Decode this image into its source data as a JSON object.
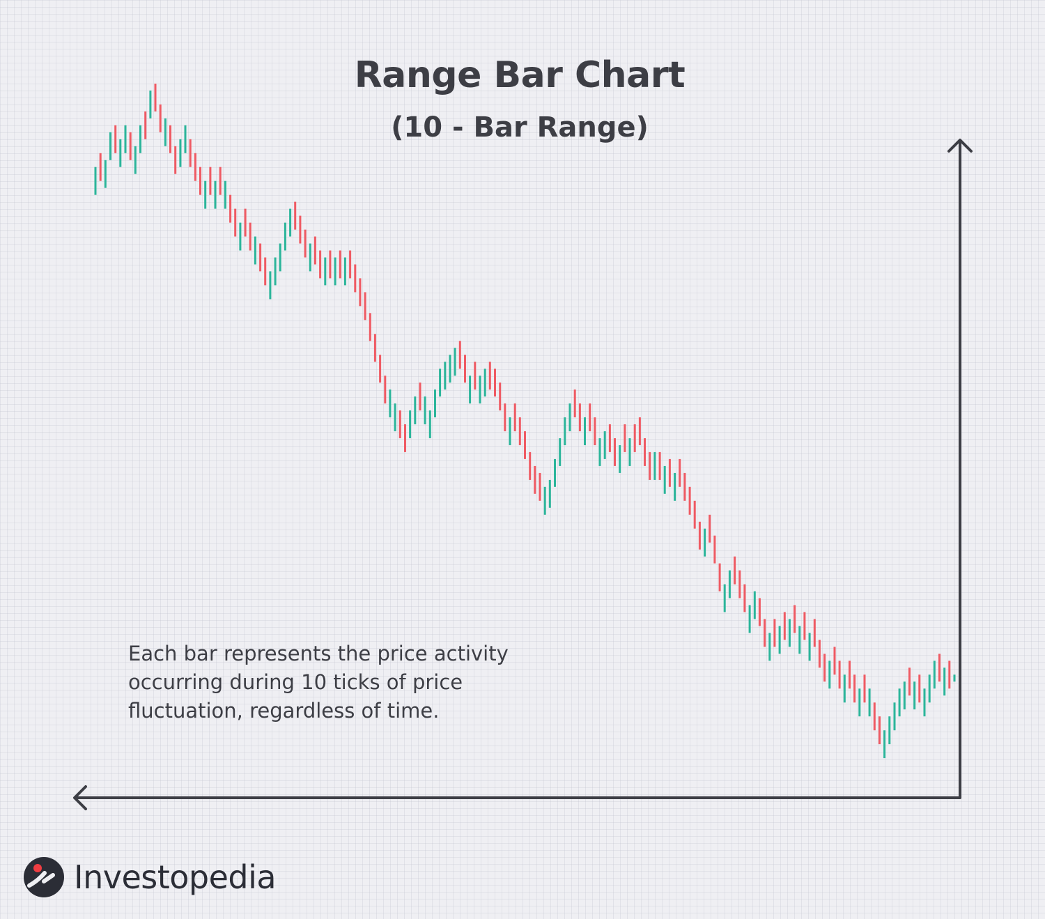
{
  "title": "Range Bar Chart",
  "subtitle": "(10 - Bar Range)",
  "annotation": "Each bar represents the price activity occurring during 10 ticks of price fluctuation, regardless of time.",
  "brand": {
    "name": "Investopedia",
    "icon": "investopedia-logo-icon"
  },
  "colors": {
    "up": "#2bb59a",
    "down": "#ef5a63",
    "axis": "#3d3e45",
    "background": "#efeff3",
    "text": "#3d3e45"
  },
  "chart_data": {
    "type": "range-bar",
    "title": "Range Bar Chart",
    "subtitle": "(10 - Bar Range)",
    "xlabel": "",
    "ylabel": "",
    "range_per_bar": 10,
    "ylim": [
      0,
      520
    ],
    "bars": [
      {
        "d": "up",
        "high": 450,
        "low": 430
      },
      {
        "d": "down",
        "high": 460,
        "low": 440
      },
      {
        "d": "up",
        "high": 455,
        "low": 435
      },
      {
        "d": "up",
        "high": 475,
        "low": 455
      },
      {
        "d": "down",
        "high": 480,
        "low": 460
      },
      {
        "d": "up",
        "high": 470,
        "low": 450
      },
      {
        "d": "up",
        "high": 480,
        "low": 460
      },
      {
        "d": "down",
        "high": 475,
        "low": 455
      },
      {
        "d": "up",
        "high": 465,
        "low": 445
      },
      {
        "d": "up",
        "high": 480,
        "low": 460
      },
      {
        "d": "down",
        "high": 490,
        "low": 470
      },
      {
        "d": "up",
        "high": 505,
        "low": 485
      },
      {
        "d": "down",
        "high": 510,
        "low": 490
      },
      {
        "d": "down",
        "high": 495,
        "low": 475
      },
      {
        "d": "up",
        "high": 485,
        "low": 465
      },
      {
        "d": "down",
        "high": 480,
        "low": 460
      },
      {
        "d": "down",
        "high": 465,
        "low": 445
      },
      {
        "d": "up",
        "high": 470,
        "low": 450
      },
      {
        "d": "up",
        "high": 480,
        "low": 460
      },
      {
        "d": "down",
        "high": 470,
        "low": 450
      },
      {
        "d": "down",
        "high": 460,
        "low": 440
      },
      {
        "d": "down",
        "high": 450,
        "low": 430
      },
      {
        "d": "up",
        "high": 440,
        "low": 420
      },
      {
        "d": "down",
        "high": 450,
        "low": 430
      },
      {
        "d": "up",
        "high": 440,
        "low": 420
      },
      {
        "d": "down",
        "high": 450,
        "low": 430
      },
      {
        "d": "up",
        "high": 440,
        "low": 420
      },
      {
        "d": "down",
        "high": 430,
        "low": 410
      },
      {
        "d": "down",
        "high": 420,
        "low": 400
      },
      {
        "d": "up",
        "high": 410,
        "low": 390
      },
      {
        "d": "down",
        "high": 420,
        "low": 400
      },
      {
        "d": "down",
        "high": 410,
        "low": 390
      },
      {
        "d": "up",
        "high": 400,
        "low": 380
      },
      {
        "d": "down",
        "high": 395,
        "low": 375
      },
      {
        "d": "down",
        "high": 385,
        "low": 365
      },
      {
        "d": "up",
        "high": 375,
        "low": 355
      },
      {
        "d": "up",
        "high": 385,
        "low": 365
      },
      {
        "d": "up",
        "high": 395,
        "low": 375
      },
      {
        "d": "up",
        "high": 410,
        "low": 390
      },
      {
        "d": "up",
        "high": 420,
        "low": 400
      },
      {
        "d": "down",
        "high": 425,
        "low": 405
      },
      {
        "d": "down",
        "high": 415,
        "low": 395
      },
      {
        "d": "down",
        "high": 405,
        "low": 385
      },
      {
        "d": "up",
        "high": 395,
        "low": 375
      },
      {
        "d": "down",
        "high": 400,
        "low": 380
      },
      {
        "d": "down",
        "high": 390,
        "low": 370
      },
      {
        "d": "up",
        "high": 385,
        "low": 365
      },
      {
        "d": "down",
        "high": 390,
        "low": 370
      },
      {
        "d": "up",
        "high": 385,
        "low": 365
      },
      {
        "d": "down",
        "high": 390,
        "low": 370
      },
      {
        "d": "up",
        "high": 385,
        "low": 365
      },
      {
        "d": "down",
        "high": 390,
        "low": 370
      },
      {
        "d": "down",
        "high": 380,
        "low": 360
      },
      {
        "d": "down",
        "high": 370,
        "low": 350
      },
      {
        "d": "down",
        "high": 360,
        "low": 340
      },
      {
        "d": "down",
        "high": 345,
        "low": 325
      },
      {
        "d": "down",
        "high": 330,
        "low": 310
      },
      {
        "d": "down",
        "high": 315,
        "low": 295
      },
      {
        "d": "down",
        "high": 300,
        "low": 280
      },
      {
        "d": "up",
        "high": 290,
        "low": 270
      },
      {
        "d": "up",
        "high": 280,
        "low": 260
      },
      {
        "d": "down",
        "high": 275,
        "low": 255
      },
      {
        "d": "down",
        "high": 265,
        "low": 245
      },
      {
        "d": "up",
        "high": 275,
        "low": 255
      },
      {
        "d": "up",
        "high": 285,
        "low": 265
      },
      {
        "d": "down",
        "high": 295,
        "low": 275
      },
      {
        "d": "up",
        "high": 285,
        "low": 265
      },
      {
        "d": "up",
        "high": 275,
        "low": 255
      },
      {
        "d": "up",
        "high": 290,
        "low": 270
      },
      {
        "d": "up",
        "high": 305,
        "low": 285
      },
      {
        "d": "up",
        "high": 310,
        "low": 290
      },
      {
        "d": "up",
        "high": 315,
        "low": 295
      },
      {
        "d": "up",
        "high": 320,
        "low": 300
      },
      {
        "d": "down",
        "high": 325,
        "low": 305
      },
      {
        "d": "down",
        "high": 315,
        "low": 295
      },
      {
        "d": "up",
        "high": 300,
        "low": 280
      },
      {
        "d": "down",
        "high": 310,
        "low": 290
      },
      {
        "d": "up",
        "high": 300,
        "low": 280
      },
      {
        "d": "up",
        "high": 305,
        "low": 285
      },
      {
        "d": "down",
        "high": 310,
        "low": 290
      },
      {
        "d": "down",
        "high": 305,
        "low": 285
      },
      {
        "d": "down",
        "high": 295,
        "low": 275
      },
      {
        "d": "down",
        "high": 280,
        "low": 260
      },
      {
        "d": "up",
        "high": 270,
        "low": 250
      },
      {
        "d": "down",
        "high": 280,
        "low": 260
      },
      {
        "d": "down",
        "high": 270,
        "low": 250
      },
      {
        "d": "down",
        "high": 260,
        "low": 240
      },
      {
        "d": "down",
        "high": 245,
        "low": 225
      },
      {
        "d": "down",
        "high": 235,
        "low": 215
      },
      {
        "d": "down",
        "high": 230,
        "low": 210
      },
      {
        "d": "up",
        "high": 220,
        "low": 200
      },
      {
        "d": "up",
        "high": 225,
        "low": 205
      },
      {
        "d": "up",
        "high": 240,
        "low": 220
      },
      {
        "d": "up",
        "high": 255,
        "low": 235
      },
      {
        "d": "up",
        "high": 270,
        "low": 250
      },
      {
        "d": "up",
        "high": 280,
        "low": 260
      },
      {
        "d": "down",
        "high": 290,
        "low": 270
      },
      {
        "d": "down",
        "high": 280,
        "low": 260
      },
      {
        "d": "up",
        "high": 270,
        "low": 250
      },
      {
        "d": "down",
        "high": 280,
        "low": 260
      },
      {
        "d": "down",
        "high": 270,
        "low": 250
      },
      {
        "d": "up",
        "high": 255,
        "low": 235
      },
      {
        "d": "up",
        "high": 260,
        "low": 240
      },
      {
        "d": "down",
        "high": 265,
        "low": 245
      },
      {
        "d": "down",
        "high": 255,
        "low": 235
      },
      {
        "d": "up",
        "high": 250,
        "low": 230
      },
      {
        "d": "down",
        "high": 265,
        "low": 245
      },
      {
        "d": "up",
        "high": 255,
        "low": 235
      },
      {
        "d": "down",
        "high": 265,
        "low": 245
      },
      {
        "d": "down",
        "high": 270,
        "low": 250
      },
      {
        "d": "down",
        "high": 255,
        "low": 235
      },
      {
        "d": "down",
        "high": 245,
        "low": 225
      },
      {
        "d": "up",
        "high": 245,
        "low": 225
      },
      {
        "d": "down",
        "high": 245,
        "low": 225
      },
      {
        "d": "up",
        "high": 235,
        "low": 215
      },
      {
        "d": "down",
        "high": 240,
        "low": 220
      },
      {
        "d": "up",
        "high": 230,
        "low": 210
      },
      {
        "d": "down",
        "high": 240,
        "low": 220
      },
      {
        "d": "down",
        "high": 230,
        "low": 210
      },
      {
        "d": "down",
        "high": 220,
        "low": 200
      },
      {
        "d": "down",
        "high": 210,
        "low": 190
      },
      {
        "d": "down",
        "high": 195,
        "low": 175
      },
      {
        "d": "up",
        "high": 190,
        "low": 170
      },
      {
        "d": "down",
        "high": 200,
        "low": 180
      },
      {
        "d": "down",
        "high": 185,
        "low": 165
      },
      {
        "d": "down",
        "high": 165,
        "low": 145
      },
      {
        "d": "up",
        "high": 150,
        "low": 130
      },
      {
        "d": "up",
        "high": 160,
        "low": 140
      },
      {
        "d": "down",
        "high": 170,
        "low": 150
      },
      {
        "d": "down",
        "high": 160,
        "low": 140
      },
      {
        "d": "down",
        "high": 150,
        "low": 130
      },
      {
        "d": "up",
        "high": 135,
        "low": 115
      },
      {
        "d": "up",
        "high": 145,
        "low": 125
      },
      {
        "d": "down",
        "high": 140,
        "low": 120
      },
      {
        "d": "down",
        "high": 125,
        "low": 105
      },
      {
        "d": "up",
        "high": 115,
        "low": 95
      },
      {
        "d": "down",
        "high": 125,
        "low": 105
      },
      {
        "d": "up",
        "high": 120,
        "low": 100
      },
      {
        "d": "down",
        "high": 130,
        "low": 110
      },
      {
        "d": "up",
        "high": 125,
        "low": 105
      },
      {
        "d": "down",
        "high": 135,
        "low": 115
      },
      {
        "d": "up",
        "high": 120,
        "low": 100
      },
      {
        "d": "down",
        "high": 130,
        "low": 110
      },
      {
        "d": "up",
        "high": 115,
        "low": 95
      },
      {
        "d": "down",
        "high": 125,
        "low": 105
      },
      {
        "d": "down",
        "high": 110,
        "low": 90
      },
      {
        "d": "down",
        "high": 100,
        "low": 80
      },
      {
        "d": "up",
        "high": 95,
        "low": 75
      },
      {
        "d": "down",
        "high": 105,
        "low": 85
      },
      {
        "d": "down",
        "high": 95,
        "low": 75
      },
      {
        "d": "up",
        "high": 85,
        "low": 65
      },
      {
        "d": "down",
        "high": 95,
        "low": 75
      },
      {
        "d": "down",
        "high": 85,
        "low": 65
      },
      {
        "d": "up",
        "high": 75,
        "low": 55
      },
      {
        "d": "down",
        "high": 85,
        "low": 65
      },
      {
        "d": "up",
        "high": 75,
        "low": 55
      },
      {
        "d": "down",
        "high": 65,
        "low": 45
      },
      {
        "d": "down",
        "high": 55,
        "low": 35
      },
      {
        "d": "up",
        "high": 45,
        "low": 25
      },
      {
        "d": "up",
        "high": 55,
        "low": 35
      },
      {
        "d": "up",
        "high": 65,
        "low": 45
      },
      {
        "d": "up",
        "high": 75,
        "low": 55
      },
      {
        "d": "up",
        "high": 80,
        "low": 60
      },
      {
        "d": "down",
        "high": 90,
        "low": 70
      },
      {
        "d": "up",
        "high": 80,
        "low": 60
      },
      {
        "d": "down",
        "high": 85,
        "low": 65
      },
      {
        "d": "up",
        "high": 75,
        "low": 55
      },
      {
        "d": "up",
        "high": 85,
        "low": 65
      },
      {
        "d": "up",
        "high": 95,
        "low": 75
      },
      {
        "d": "down",
        "high": 100,
        "low": 80
      },
      {
        "d": "up",
        "high": 90,
        "low": 70
      },
      {
        "d": "down",
        "high": 95,
        "low": 75
      },
      {
        "d": "up",
        "high": 85,
        "low": 80
      }
    ]
  }
}
